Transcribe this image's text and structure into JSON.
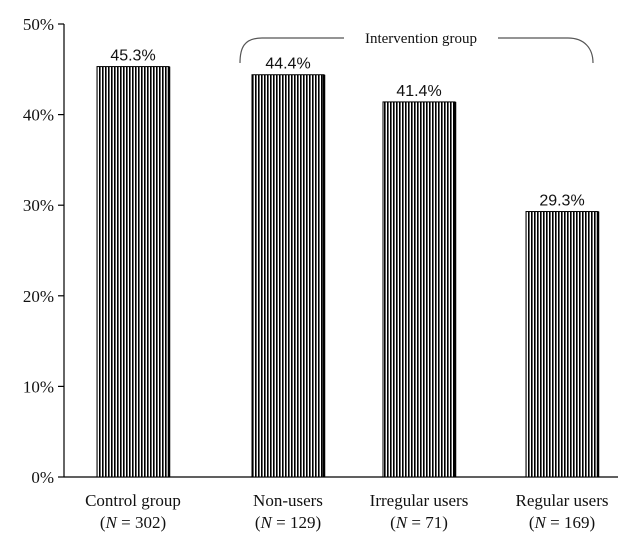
{
  "chart_data": {
    "type": "bar",
    "categories": [
      "Control group",
      "Non-users",
      "Irregular users",
      "Regular users"
    ],
    "category_n": [
      "N = 302",
      "N = 129",
      "N = 71",
      "N = 169"
    ],
    "values": [
      45.3,
      44.4,
      41.4,
      29.3
    ],
    "value_labels": [
      "45.3%",
      "44.4%",
      "41.4%",
      "29.3%"
    ],
    "ylim": [
      0,
      50
    ],
    "yticks": [
      0,
      10,
      20,
      30,
      40,
      50
    ],
    "ytick_labels": [
      "0%",
      "10%",
      "20%",
      "30%",
      "40%",
      "50%"
    ],
    "title": "",
    "xlabel": "",
    "ylabel": "",
    "grid": false,
    "bar_pattern": "vertical-hatch",
    "bar_color": "#000000",
    "annotations": [
      {
        "text": "Intervention group",
        "type": "bracket",
        "spans_categories": [
          "Non-users",
          "Irregular users",
          "Regular users"
        ]
      }
    ]
  }
}
